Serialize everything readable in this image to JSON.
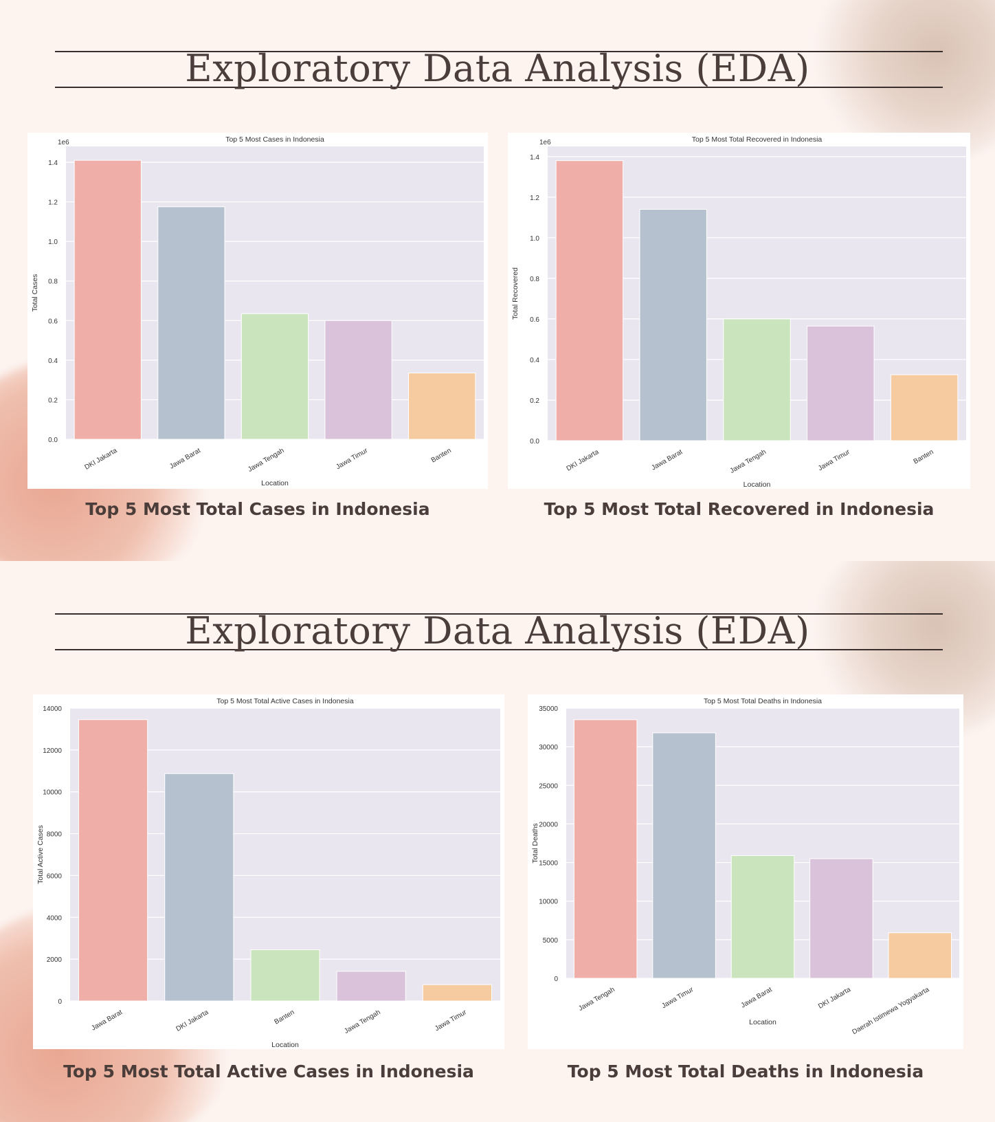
{
  "slides": [
    {
      "heading": "Exploratory Data Analysis (EDA)",
      "charts": [
        {
          "caption": "Top 5 Most Total Cases in Indonesia"
        },
        {
          "caption": "Top 5 Most Total Recovered in Indonesia"
        }
      ]
    },
    {
      "heading": "Exploratory Data Analysis (EDA)",
      "charts": [
        {
          "caption": "Top 5 Most Total Active Cases in Indonesia"
        },
        {
          "caption": "Top 5 Most Total Deaths in Indonesia"
        }
      ]
    }
  ],
  "colors": {
    "plot_bg": "#eae6ef",
    "grid": "#ffffff",
    "text": "#333333",
    "bars": [
      "#f0aea8",
      "#b5c1cf",
      "#cae5bd",
      "#d9c2da",
      "#f5cb9f"
    ]
  },
  "chart_data": [
    {
      "type": "bar",
      "title": "Top 5 Most Cases in Indonesia",
      "xlabel": "Location",
      "ylabel": "Total Cases",
      "offset_label": "1e6",
      "categories": [
        "DKI Jakarta",
        "Jawa Barat",
        "Jawa Tengah",
        "Jawa Timur",
        "Banten"
      ],
      "values": [
        1.41,
        1.175,
        0.635,
        0.6,
        0.335
      ],
      "yticks": [
        0,
        0.2,
        0.4,
        0.6,
        0.8,
        1.0,
        1.2,
        1.4
      ],
      "ytick_labels": [
        "0.0",
        "0.2",
        "0.4",
        "0.6",
        "0.8",
        "1.0",
        "1.2",
        "1.4"
      ],
      "ylim": [
        0,
        1.48
      ]
    },
    {
      "type": "bar",
      "title": "Top 5 Most Total Recovered in Indonesia",
      "xlabel": "Location",
      "ylabel": "Total Recovered",
      "offset_label": "1e6",
      "categories": [
        "DKI Jakarta",
        "Jawa Barat",
        "Jawa Tengah",
        "Jawa Timur",
        "Banten"
      ],
      "values": [
        1.38,
        1.14,
        0.6,
        0.565,
        0.325
      ],
      "yticks": [
        0,
        0.2,
        0.4,
        0.6,
        0.8,
        1.0,
        1.2,
        1.4
      ],
      "ytick_labels": [
        "0.0",
        "0.2",
        "0.4",
        "0.6",
        "0.8",
        "1.0",
        "1.2",
        "1.4"
      ],
      "ylim": [
        0,
        1.45
      ]
    },
    {
      "type": "bar",
      "title": "Top 5 Most Total Active Cases in Indonesia",
      "xlabel": "Location",
      "ylabel": "Total Active Cases",
      "categories": [
        "Jawa Barat",
        "DKI Jakarta",
        "Banten",
        "Jawa Tengah",
        "Jawa Timur"
      ],
      "values": [
        13450,
        10870,
        2450,
        1420,
        780
      ],
      "yticks": [
        0,
        2000,
        4000,
        6000,
        8000,
        10000,
        12000,
        14000
      ],
      "ytick_labels": [
        "0",
        "2000",
        "4000",
        "6000",
        "8000",
        "10000",
        "12000",
        "14000"
      ],
      "ylim": [
        0,
        14000
      ]
    },
    {
      "type": "bar",
      "title": "Top 5 Most Total Deaths in Indonesia",
      "xlabel": "Location",
      "ylabel": "Total Deaths",
      "categories": [
        "Jawa Tengah",
        "Jawa Timur",
        "Jawa Barat",
        "DKI Jakarta",
        "Daerah Istimewa Yogyakarta"
      ],
      "values": [
        33500,
        31800,
        15900,
        15500,
        5900
      ],
      "yticks": [
        0,
        5000,
        10000,
        15000,
        20000,
        25000,
        30000,
        35000
      ],
      "ytick_labels": [
        "0",
        "5000",
        "10000",
        "15000",
        "20000",
        "25000",
        "30000",
        "35000"
      ],
      "ylim": [
        0,
        35000
      ]
    }
  ]
}
